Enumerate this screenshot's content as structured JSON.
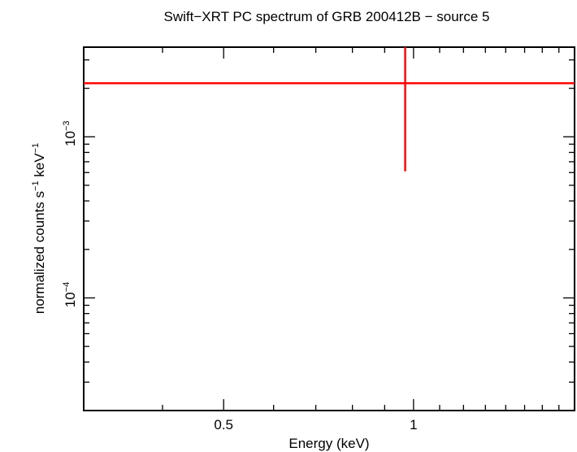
{
  "chart_data": {
    "type": "scatter",
    "title": "Swift−XRT PC spectrum of GRB 200412B − source 5",
    "xlabel": "Energy (keV)",
    "ylabel_parts": {
      "text1": "normalized counts s",
      "sup1": "−1",
      "text2": " keV",
      "sup2": "−1"
    },
    "x_scale": "log",
    "y_scale": "log",
    "xlim": [
      0.3,
      1.8
    ],
    "ylim": [
      2e-05,
      0.0036
    ],
    "x_ticks": [
      {
        "value": 0.5,
        "label": "0.5"
      },
      {
        "value": 1,
        "label": "1"
      }
    ],
    "y_ticks": [
      {
        "value": 0.0001,
        "base": "10",
        "exp": "−4"
      },
      {
        "value": 0.001,
        "base": "10",
        "exp": "−3"
      }
    ],
    "series": [
      {
        "color": "#ff0000",
        "points": [
          {
            "x": 0.97,
            "xerr": [
              0.3,
              1.8
            ],
            "y": 0.00215,
            "yerr": [
              0.00061,
              0.0036
            ]
          }
        ]
      }
    ],
    "grid": false
  }
}
